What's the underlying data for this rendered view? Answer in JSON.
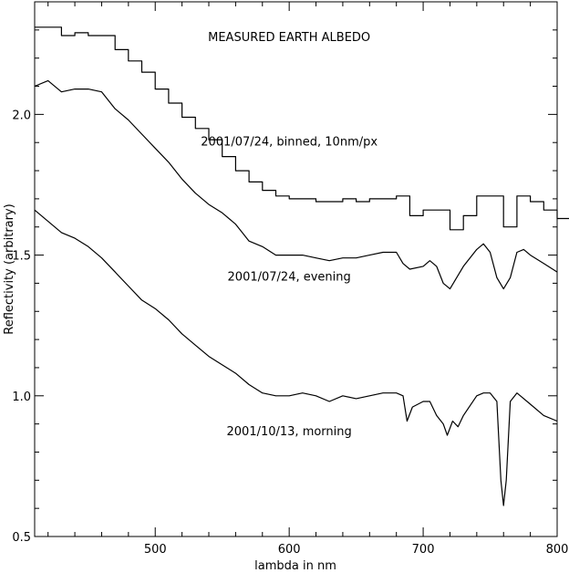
{
  "chart_data": {
    "type": "line",
    "title": "MEASURED EARTH ALBEDO",
    "xlabel": "lambda in nm",
    "ylabel": "Reflectivity (arbitrary)",
    "xlim": [
      410,
      800
    ],
    "ylim": [
      0.5,
      2.4
    ],
    "x_ticks": [
      500,
      600,
      700,
      800
    ],
    "y_ticks": [
      0.5,
      1.0,
      1.5,
      2.0
    ],
    "x_tick_labels": [
      "500",
      "600",
      "700",
      "800"
    ],
    "y_tick_labels": [
      "0.5",
      "1.0",
      "1.5",
      "2.0"
    ],
    "grid": false,
    "series": [
      {
        "name": "2001/07/24, binned, 10nm/px",
        "step": true,
        "x": [
          410,
          420,
          430,
          440,
          450,
          460,
          470,
          480,
          490,
          500,
          510,
          520,
          530,
          540,
          550,
          560,
          570,
          580,
          590,
          600,
          610,
          620,
          630,
          640,
          650,
          660,
          670,
          680,
          690,
          700,
          710,
          720,
          730,
          740,
          750,
          760,
          770,
          780,
          790,
          800
        ],
        "values": [
          2.31,
          2.31,
          2.28,
          2.29,
          2.28,
          2.28,
          2.23,
          2.19,
          2.15,
          2.09,
          2.04,
          1.99,
          1.95,
          1.91,
          1.85,
          1.8,
          1.76,
          1.73,
          1.71,
          1.7,
          1.7,
          1.69,
          1.69,
          1.7,
          1.69,
          1.7,
          1.7,
          1.71,
          1.64,
          1.66,
          1.66,
          1.59,
          1.64,
          1.71,
          1.71,
          1.6,
          1.71,
          1.69,
          1.66,
          1.63
        ]
      },
      {
        "name": "2001/07/24, evening",
        "x": [
          410,
          420,
          430,
          440,
          450,
          460,
          470,
          480,
          490,
          500,
          510,
          520,
          530,
          540,
          550,
          560,
          570,
          580,
          590,
          600,
          610,
          620,
          630,
          640,
          650,
          660,
          670,
          680,
          685,
          690,
          700,
          705,
          710,
          715,
          720,
          725,
          730,
          740,
          745,
          750,
          755,
          760,
          765,
          770,
          775,
          780,
          790,
          800
        ],
        "values": [
          2.1,
          2.12,
          2.08,
          2.09,
          2.09,
          2.08,
          2.02,
          1.98,
          1.93,
          1.88,
          1.83,
          1.77,
          1.72,
          1.68,
          1.65,
          1.61,
          1.55,
          1.53,
          1.5,
          1.5,
          1.5,
          1.49,
          1.48,
          1.49,
          1.49,
          1.5,
          1.51,
          1.51,
          1.47,
          1.45,
          1.46,
          1.48,
          1.46,
          1.4,
          1.38,
          1.42,
          1.46,
          1.52,
          1.54,
          1.51,
          1.42,
          1.38,
          1.42,
          1.51,
          1.52,
          1.5,
          1.47,
          1.44
        ]
      },
      {
        "name": "2001/10/13, morning",
        "x": [
          410,
          420,
          430,
          440,
          450,
          460,
          470,
          480,
          490,
          500,
          510,
          520,
          530,
          540,
          550,
          560,
          570,
          580,
          590,
          600,
          610,
          620,
          630,
          640,
          650,
          660,
          670,
          680,
          685,
          688,
          692,
          700,
          705,
          710,
          715,
          718,
          722,
          726,
          730,
          740,
          745,
          750,
          755,
          758,
          760,
          762,
          765,
          770,
          780,
          790,
          800
        ],
        "values": [
          1.66,
          1.62,
          1.58,
          1.56,
          1.53,
          1.49,
          1.44,
          1.39,
          1.34,
          1.31,
          1.27,
          1.22,
          1.18,
          1.14,
          1.11,
          1.08,
          1.04,
          1.01,
          1.0,
          1.0,
          1.01,
          1.0,
          0.98,
          1.0,
          0.99,
          1.0,
          1.01,
          1.01,
          1.0,
          0.91,
          0.96,
          0.98,
          0.98,
          0.93,
          0.9,
          0.86,
          0.91,
          0.89,
          0.93,
          1.0,
          1.01,
          1.01,
          0.98,
          0.7,
          0.61,
          0.7,
          0.98,
          1.01,
          0.97,
          0.93,
          0.91
        ]
      }
    ],
    "annotations": [
      {
        "text": "MEASURED EARTH ALBEDO",
        "x": 600,
        "y": 2.26
      },
      {
        "text": "2001/07/24, binned, 10nm/px",
        "x": 600,
        "y": 1.89
      },
      {
        "text": "2001/07/24, evening",
        "x": 600,
        "y": 1.41
      },
      {
        "text": "2001/10/13, morning",
        "x": 600,
        "y": 0.86
      }
    ]
  }
}
